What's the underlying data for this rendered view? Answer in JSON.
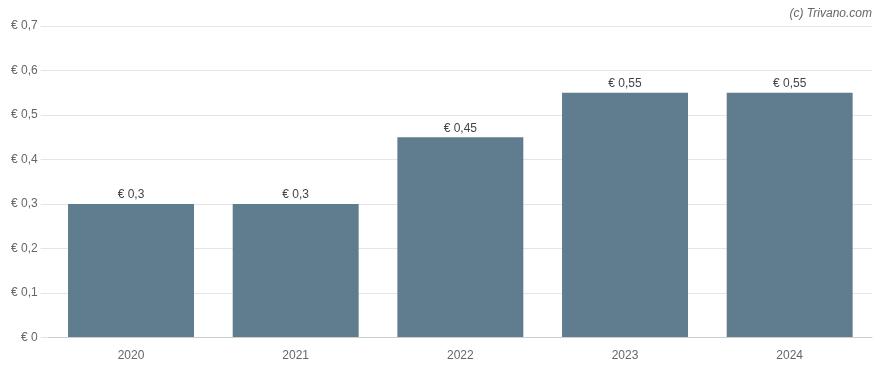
{
  "chart_data": {
    "type": "bar",
    "categories": [
      "2020",
      "2021",
      "2022",
      "2023",
      "2024"
    ],
    "values": [
      0.3,
      0.3,
      0.45,
      0.55,
      0.55
    ],
    "value_labels": [
      "€ 0,3",
      "€ 0,3",
      "€ 0,45",
      "€ 0,55",
      "€ 0,55"
    ],
    "data_labels": true,
    "color": "#5f7d8e",
    "ylim": [
      0,
      0.7
    ],
    "yticks": [
      {
        "value": 0,
        "label": "€ 0"
      },
      {
        "value": 0.1,
        "label": "€ 0,1"
      },
      {
        "value": 0.2,
        "label": "€ 0,2"
      },
      {
        "value": 0.3,
        "label": "€ 0,3"
      },
      {
        "value": 0.4,
        "label": "€ 0,4"
      },
      {
        "value": 0.5,
        "label": "€ 0,5"
      },
      {
        "value": 0.6,
        "label": "€ 0,6"
      },
      {
        "value": 0.7,
        "label": "€ 0,7"
      }
    ],
    "grid": true,
    "annotations": [
      "(c) Trivano.com"
    ]
  }
}
